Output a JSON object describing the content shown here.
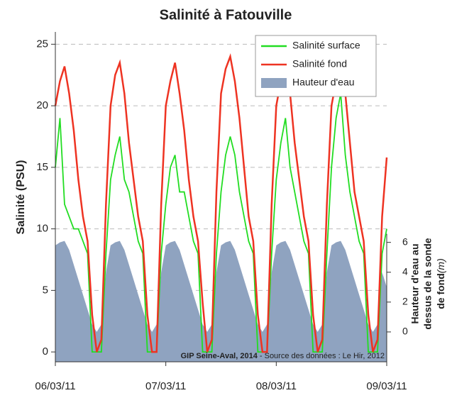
{
  "chart_data": {
    "type": "line",
    "title": "Salinité à Fatouville",
    "ylabel": "Salinité (PSU)",
    "y2label": [
      "Hauteur d'eau au",
      "dessus de la sonde",
      "de fond"
    ],
    "y2unit": "(m)",
    "annotation": [
      "GIP Seine-Aval, 2014",
      " - Source des données : Le Hir, 2012"
    ],
    "xlim": [
      0,
      72
    ],
    "xticks": [
      {
        "value": 0,
        "label": "06/03/11"
      },
      {
        "value": 24,
        "label": "07/03/11"
      },
      {
        "value": 48,
        "label": "08/03/11"
      },
      {
        "value": 72,
        "label": "09/03/11"
      }
    ],
    "ylim": [
      -0.8,
      26
    ],
    "yticks": [
      0,
      5,
      10,
      15,
      20,
      25
    ],
    "y2lim": [
      -2,
      20.1
    ],
    "y2ticks": [
      0,
      2,
      4,
      6
    ],
    "grid": true,
    "legend": "top-right",
    "x": [
      0,
      1,
      2,
      3,
      4,
      5,
      6,
      7,
      8,
      9,
      10,
      11,
      12,
      13,
      14,
      15,
      16,
      17,
      18,
      19,
      20,
      21,
      22,
      23,
      24,
      25,
      26,
      27,
      28,
      29,
      30,
      31,
      32,
      33,
      34,
      35,
      36,
      37,
      38,
      39,
      40,
      41,
      42,
      43,
      44,
      45,
      46,
      47,
      48,
      49,
      50,
      51,
      52,
      53,
      54,
      55,
      56,
      57,
      58,
      59,
      60,
      61,
      62,
      63,
      64,
      65,
      66,
      67,
      68,
      69,
      70,
      71,
      72
    ],
    "series": [
      {
        "name": "Salinité surface",
        "color": "#22dd22",
        "style": "line",
        "values": [
          15,
          19,
          12,
          11,
          10,
          10,
          9,
          8,
          0,
          0,
          0,
          8,
          14,
          16,
          17.5,
          14,
          13,
          11,
          9,
          8,
          0,
          0,
          0,
          8,
          12,
          15,
          16,
          13,
          13,
          11,
          9,
          8,
          0,
          0,
          0,
          8,
          13,
          16,
          17.5,
          16,
          13,
          11,
          9,
          8,
          0,
          0,
          0,
          8,
          14,
          17,
          19,
          15,
          13,
          11,
          9,
          8,
          0,
          0,
          0,
          8,
          15,
          19,
          21,
          16,
          13,
          11,
          9,
          8,
          0,
          0,
          0,
          8,
          10
        ]
      },
      {
        "name": "Salinité fond",
        "color": "#ee3322",
        "style": "line",
        "values": [
          20,
          22,
          23.2,
          21,
          18,
          14,
          11,
          9,
          3,
          0,
          1,
          12,
          20,
          22.5,
          23.5,
          21,
          17,
          14,
          11,
          9,
          3,
          0,
          0,
          12,
          20,
          22,
          23.5,
          21,
          18,
          14,
          11,
          9,
          4,
          0,
          1,
          13,
          21,
          23,
          24,
          22,
          19,
          15,
          11,
          9,
          3,
          0,
          0,
          12,
          20,
          22,
          23,
          21,
          17,
          14,
          11,
          9,
          3,
          0,
          1,
          12,
          20,
          22,
          23,
          21,
          17,
          13,
          11,
          9,
          3,
          0,
          1,
          11,
          15.8
        ]
      },
      {
        "name": "Hauteur d'eau",
        "color": "#8fa3c0",
        "style": "area",
        "axis": "y2",
        "values": [
          5.8,
          6,
          6.1,
          5.5,
          4.5,
          3.5,
          2.5,
          1.5,
          0.5,
          0,
          0.5,
          4,
          5.8,
          6,
          6.1,
          5.5,
          4.5,
          3.5,
          2.5,
          1.5,
          0.5,
          0,
          0.5,
          4,
          5.8,
          6,
          6.1,
          5.5,
          4.5,
          3.5,
          2.5,
          1.5,
          0.5,
          0,
          0.5,
          4,
          5.8,
          6,
          6.1,
          5.5,
          4.5,
          3.5,
          2.5,
          1.5,
          0.5,
          0,
          0.5,
          4,
          5.8,
          6,
          6.1,
          5.5,
          4.5,
          3.5,
          2.5,
          1.5,
          0.5,
          0,
          0.5,
          4,
          5.8,
          6,
          6.1,
          5.5,
          4.5,
          3.5,
          2.5,
          1.5,
          0.5,
          0,
          0.5,
          4,
          3
        ]
      }
    ]
  }
}
